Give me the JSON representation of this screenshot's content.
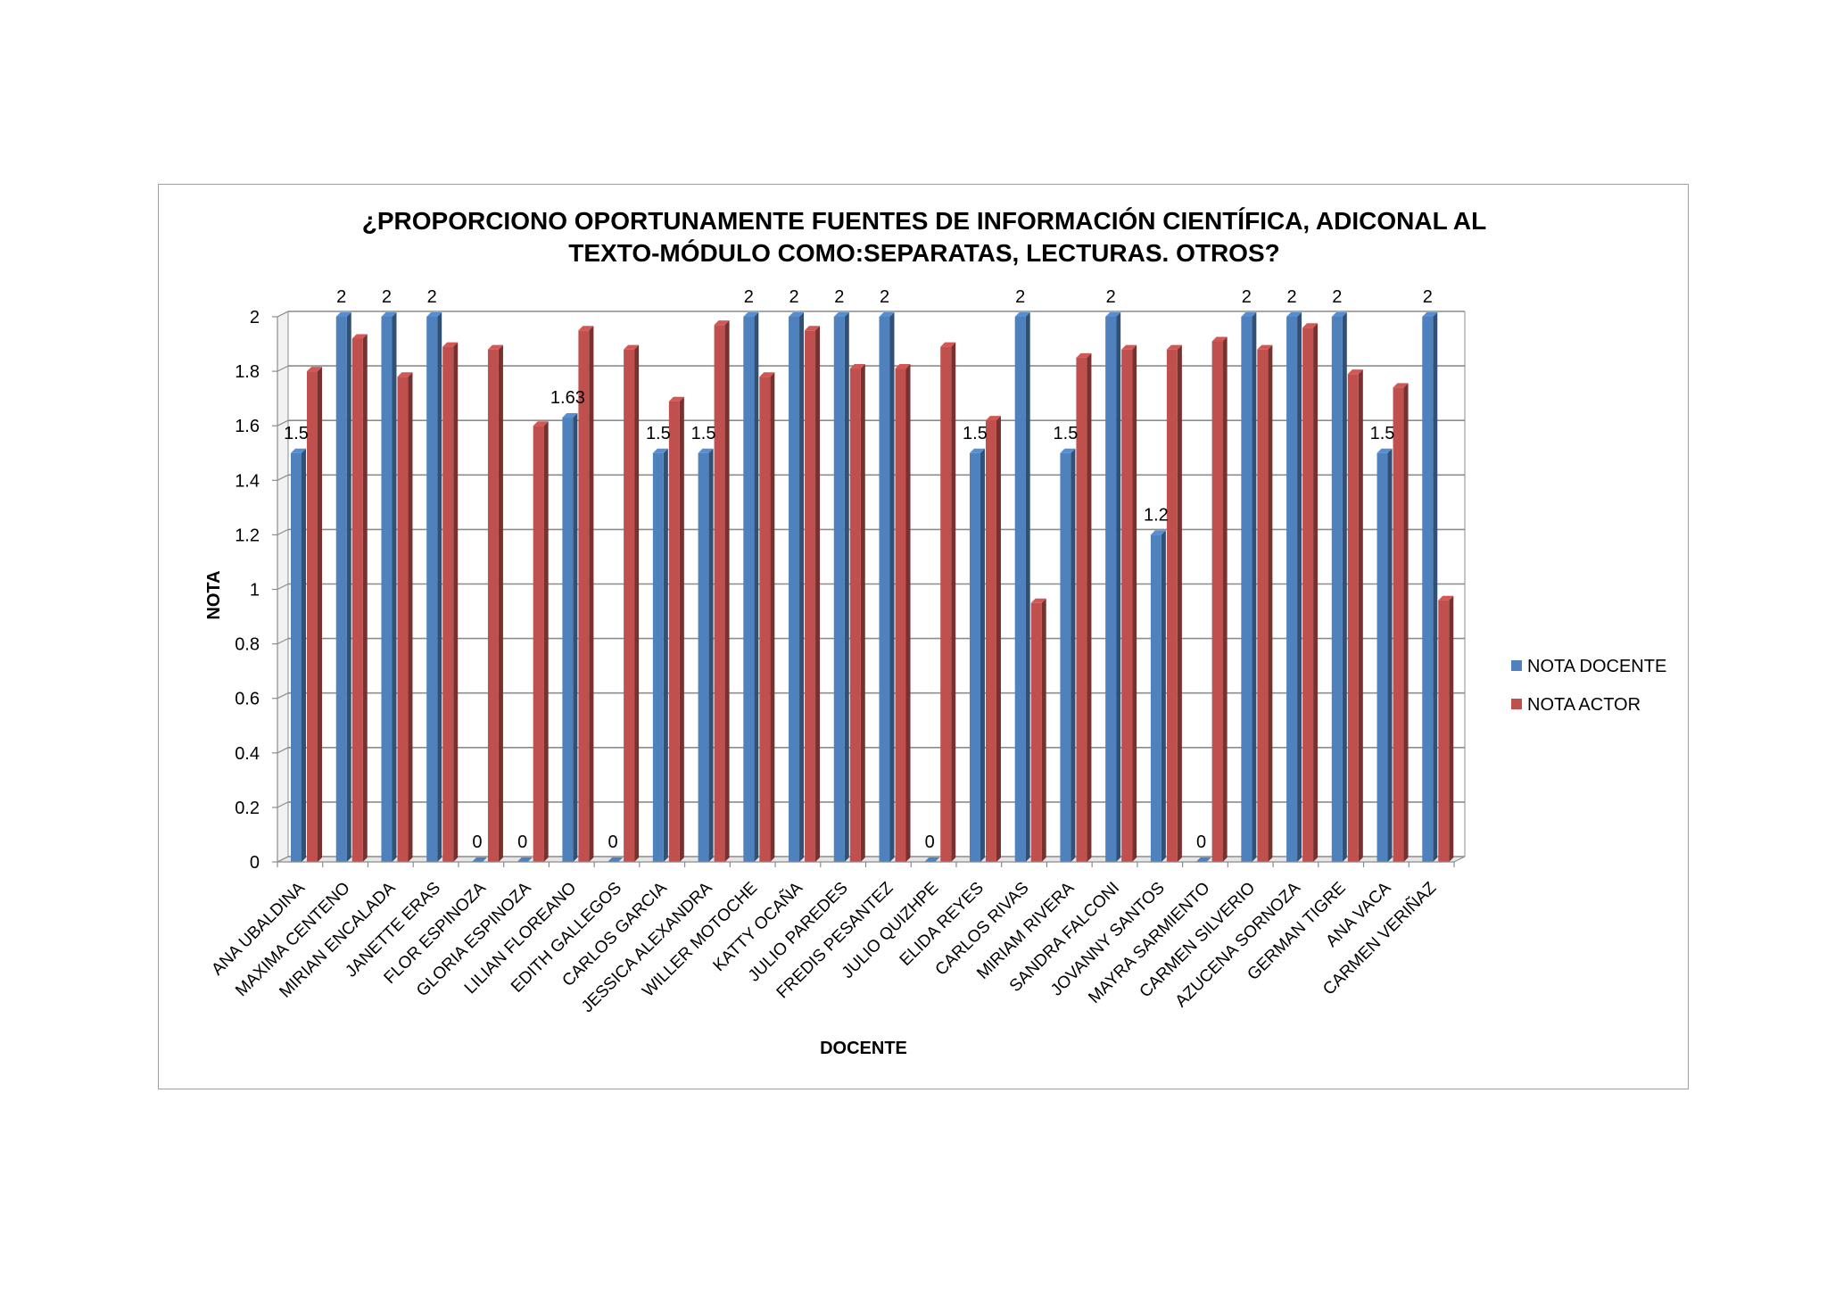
{
  "chart_data": {
    "type": "bar",
    "title_lines": [
      "¿PROPORCIONO OPORTUNAMENTE FUENTES DE INFORMACIÓN CIENTÍFICA, ADICONAL AL",
      "TEXTO-MÓDULO COMO:SEPARATAS, LECTURAS. OTROS?"
    ],
    "xlabel": "DOCENTE",
    "ylabel": "NOTA",
    "ylim": [
      0,
      2
    ],
    "yticks": [
      "0",
      "0.2",
      "0.4",
      "0.6",
      "0.8",
      "1",
      "1.2",
      "1.4",
      "1.6",
      "1.8",
      "2"
    ],
    "grid": true,
    "legend_position": "right",
    "categories": [
      "ANA UBALDINA",
      "MAXIMA CENTENO",
      "MIRIAN ENCALADA",
      "JANETTE ERAS",
      "FLOR ESPINOZA",
      "GLORIA ESPINOZA",
      "LILIAN FLOREANO",
      "EDITH GALLEGOS",
      "CARLOS GARCIA",
      "JESSICA ALEXANDRA",
      "WILLER MOTOCHE",
      "KATTY OCAÑA",
      "JULIO PAREDES",
      "FREDIS PESANTEZ",
      "JULIO QUIZHPE",
      "ELIDA REYES",
      "CARLOS RIVAS",
      "MIRIAM RIVERA",
      "SANDRA FALCONI",
      "JOVANNY SANTOS",
      "MAYRA SARMIENTO",
      "CARMEN SILVERIO",
      "AZUCENA SORNOZA",
      "GERMAN TIGRE",
      "ANA VACA",
      "CARMEN VERIÑAZ"
    ],
    "series": [
      {
        "name": "NOTA DOCENTE",
        "color": "#4f81bd",
        "values": [
          1.5,
          2,
          2,
          2,
          0,
          0,
          1.63,
          0,
          1.5,
          1.5,
          2,
          2,
          2,
          2,
          0,
          1.5,
          2,
          1.5,
          2,
          1.2,
          0,
          2,
          2,
          2,
          1.5,
          2
        ],
        "data_labels": [
          "1.5",
          "2",
          "2",
          "2",
          "0",
          "0",
          "1.63",
          "0",
          "1.5",
          "1.5",
          "2",
          "2",
          "2",
          "2",
          "0",
          "1.5",
          "2",
          "1.5",
          "2",
          "1.2",
          "0",
          "2",
          "2",
          "2",
          "1.5",
          "2"
        ]
      },
      {
        "name": "NOTA ACTOR",
        "color": "#c0504d",
        "values": [
          1.8,
          1.92,
          1.78,
          1.89,
          1.88,
          1.6,
          1.95,
          1.88,
          1.69,
          1.97,
          1.78,
          1.95,
          1.81,
          1.81,
          1.89,
          1.62,
          0.95,
          1.85,
          1.88,
          1.88,
          1.91,
          1.88,
          1.96,
          1.79,
          1.74,
          0.96
        ]
      }
    ]
  }
}
